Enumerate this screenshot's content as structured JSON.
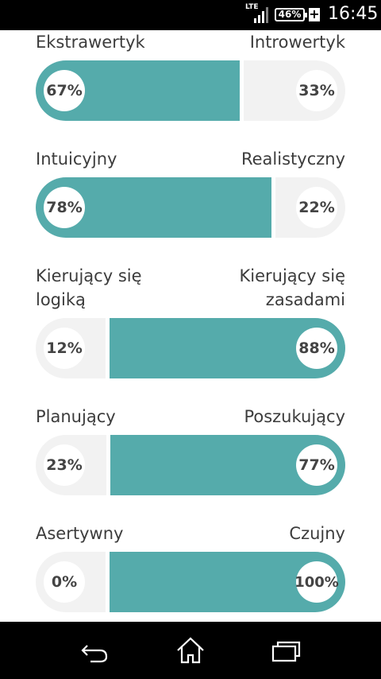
{
  "status_bar": {
    "network": "LTE",
    "battery": "46%",
    "charging_symbol": "+",
    "time": "16:45"
  },
  "traits": [
    {
      "left_label": "Ekstrawertyk",
      "right_label": "Introwertyk",
      "left_value": "67%",
      "right_value": "33%",
      "dominant": "left",
      "left_fraction": 0.67
    },
    {
      "left_label": "Intuicyjny",
      "right_label": "Realistyczny",
      "left_value": "78%",
      "right_value": "22%",
      "dominant": "left",
      "left_fraction": 0.78
    },
    {
      "left_label": "Kierujący się\nlogiką",
      "right_label": "Kierujący się\nzasadami",
      "left_value": "12%",
      "right_value": "88%",
      "dominant": "right",
      "left_fraction": 0.12
    },
    {
      "left_label": "Planujący",
      "right_label": "Poszukujący",
      "left_value": "23%",
      "right_value": "77%",
      "dominant": "right",
      "left_fraction": 0.23
    },
    {
      "left_label": "Asertywny",
      "right_label": "Czujny",
      "left_value": "0%",
      "right_value": "100%",
      "dominant": "right",
      "left_fraction": 0.0
    }
  ],
  "colors": {
    "dominant": "#55abab",
    "recessive": "#f2f2f2"
  },
  "nav_bar": {
    "icons": [
      "back-icon",
      "home-icon",
      "recent-apps-icon"
    ]
  }
}
